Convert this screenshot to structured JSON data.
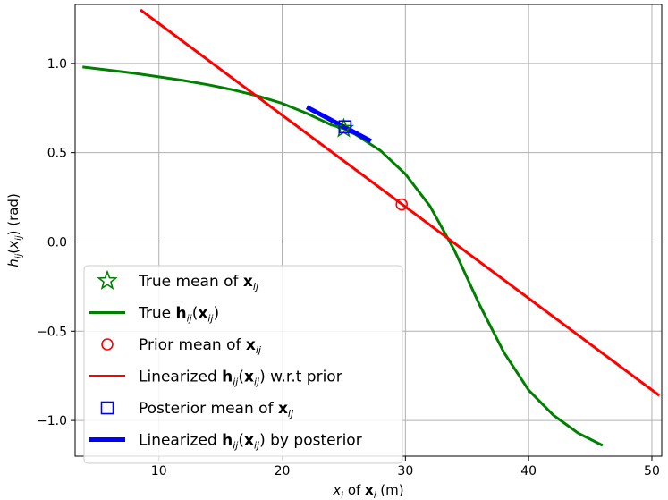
{
  "chart_data": {
    "type": "line",
    "xlabel": "x_i of x_i (m)",
    "ylabel": "h_ij(x_ij) (rad)",
    "xlim": [
      3.2,
      50.8
    ],
    "ylim": [
      -1.2,
      1.33
    ],
    "xticks": [
      10,
      20,
      30,
      40,
      50
    ],
    "yticks": [
      -1.0,
      -0.5,
      0.0,
      0.5,
      1.0
    ],
    "ytick_labels": [
      "−1.0",
      "−0.5",
      "0.0",
      "0.5",
      "1.0"
    ],
    "grid": true,
    "legend_position": "lower-left",
    "colors": {
      "true": "#008000",
      "prior": "#ff0000",
      "posterior": "#0000ff"
    },
    "series": [
      {
        "id": "true_mean",
        "name": "True mean of x_ij",
        "kind": "marker",
        "marker": "star",
        "points": [
          [
            25.0,
            0.635
          ]
        ]
      },
      {
        "id": "true_curve",
        "name": "True h_ij(x_ij)",
        "kind": "line",
        "x": [
          3.8,
          6,
          8,
          10,
          12,
          14,
          16,
          18,
          20,
          22,
          24,
          25,
          26,
          28,
          30,
          32,
          34,
          36,
          38,
          40,
          42,
          44,
          46
        ],
        "y": [
          0.98,
          0.962,
          0.945,
          0.925,
          0.904,
          0.88,
          0.852,
          0.818,
          0.776,
          0.72,
          0.655,
          0.635,
          0.6,
          0.51,
          0.38,
          0.2,
          -0.05,
          -0.35,
          -0.62,
          -0.83,
          -0.97,
          -1.07,
          -1.14
        ]
      },
      {
        "id": "prior_mean",
        "name": "Prior mean of x_ij",
        "kind": "marker",
        "marker": "circle",
        "points": [
          [
            29.7,
            0.21
          ]
        ]
      },
      {
        "id": "prior_linearization",
        "name": "Linearized h_ij(x_ij) w.r.t prior",
        "kind": "line",
        "x": [
          8.5,
          50.6
        ],
        "y": [
          1.3,
          -0.86
        ]
      },
      {
        "id": "posterior_mean",
        "name": "Posterior mean of x_ij",
        "kind": "marker",
        "marker": "square",
        "points": [
          [
            25.1,
            0.645
          ]
        ]
      },
      {
        "id": "posterior_linearization",
        "name": "Linearized h_ij(x_ij) by posterior",
        "kind": "line",
        "x": [
          22.0,
          27.2
        ],
        "y": [
          0.755,
          0.565
        ]
      }
    ],
    "legend_order": [
      "true_mean",
      "true_curve",
      "prior_mean",
      "prior_linearization",
      "posterior_mean",
      "posterior_linearization"
    ]
  }
}
